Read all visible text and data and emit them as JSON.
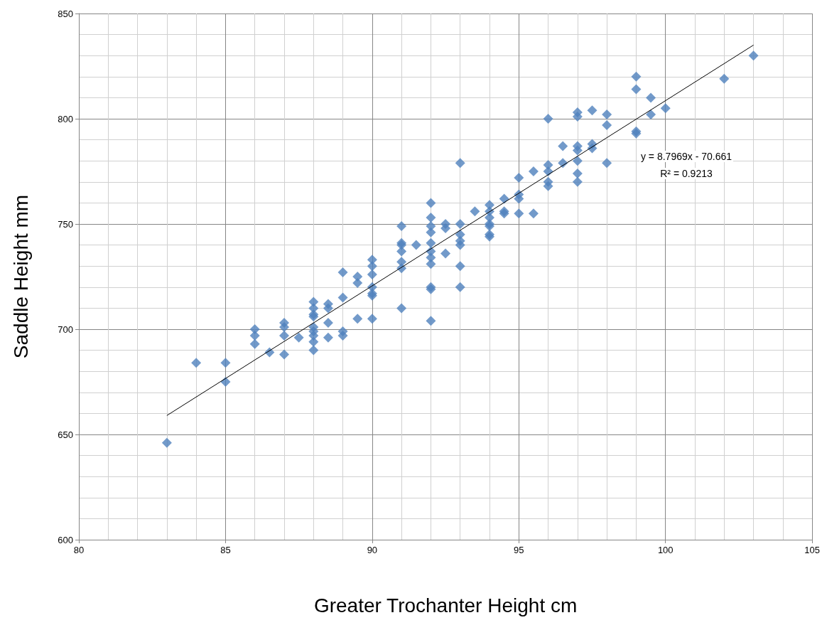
{
  "chart_data": {
    "type": "scatter",
    "xlabel": "Greater Trochanter Height cm",
    "ylabel": "Saddle Height mm",
    "xlim": [
      80,
      105
    ],
    "xticks": [
      80,
      85,
      90,
      95,
      100,
      105
    ],
    "ylim": [
      600,
      850
    ],
    "yticks": [
      600,
      650,
      700,
      750,
      800,
      850
    ],
    "grid": true,
    "marker": "diamond",
    "annotations": [
      "y = 8.7969x - 70.661\nR² = 0.9213"
    ],
    "series": [
      {
        "color": "#4f81bd",
        "x": [
          83,
          84,
          85,
          85,
          86,
          86,
          86,
          86.5,
          87,
          87,
          87,
          87,
          87.5,
          88,
          88,
          88,
          88,
          88,
          88,
          88,
          88,
          88,
          88.5,
          88.5,
          88.5,
          88.5,
          89,
          89,
          89,
          89,
          89.5,
          89.5,
          89.5,
          90,
          90,
          90,
          90,
          90,
          90,
          90,
          91,
          91,
          91,
          91,
          91,
          91,
          91,
          91.5,
          92,
          92,
          92,
          92,
          92,
          92,
          92,
          92,
          92,
          92,
          92,
          92.5,
          92.5,
          92.5,
          93,
          93,
          93,
          93,
          93,
          93,
          93,
          93.5,
          94,
          94,
          94,
          94,
          94,
          94,
          94,
          94.5,
          94.5,
          94.5,
          95,
          95,
          95,
          95,
          95.5,
          95.5,
          96,
          96,
          96,
          96,
          96,
          96.5,
          96.5,
          97,
          97,
          97,
          97,
          97,
          97,
          97,
          97.5,
          97.5,
          97.5,
          98,
          98,
          98,
          99,
          99,
          99,
          99,
          99.5,
          99.5,
          100,
          102,
          103
        ],
        "values": [
          646,
          684,
          684,
          675,
          700,
          697,
          693,
          689,
          703,
          701,
          697,
          688,
          696,
          713,
          710,
          707,
          706,
          701,
          699,
          697,
          694,
          690,
          712,
          710,
          703,
          696,
          727,
          715,
          699,
          697,
          725,
          722,
          705,
          733,
          730,
          726,
          720,
          717,
          716,
          705,
          749,
          741,
          740,
          737,
          732,
          729,
          710,
          740,
          760,
          753,
          749,
          746,
          741,
          737,
          734,
          731,
          720,
          719,
          704,
          750,
          748,
          736,
          779,
          750,
          745,
          742,
          740,
          730,
          720,
          756,
          759,
          756,
          753,
          750,
          749,
          745,
          744,
          762,
          756,
          755,
          772,
          764,
          762,
          755,
          775,
          755,
          800,
          778,
          775,
          770,
          768,
          787,
          779,
          803,
          801,
          787,
          785,
          780,
          774,
          770,
          804,
          788,
          786,
          802,
          797,
          779,
          820,
          814,
          794,
          793,
          810,
          802,
          805,
          819,
          830
        ]
      },
      {
        "type": "line",
        "color": "#000000",
        "marker": "none",
        "x": [
          83,
          103
        ],
        "values": [
          659,
          835
        ]
      }
    ]
  }
}
